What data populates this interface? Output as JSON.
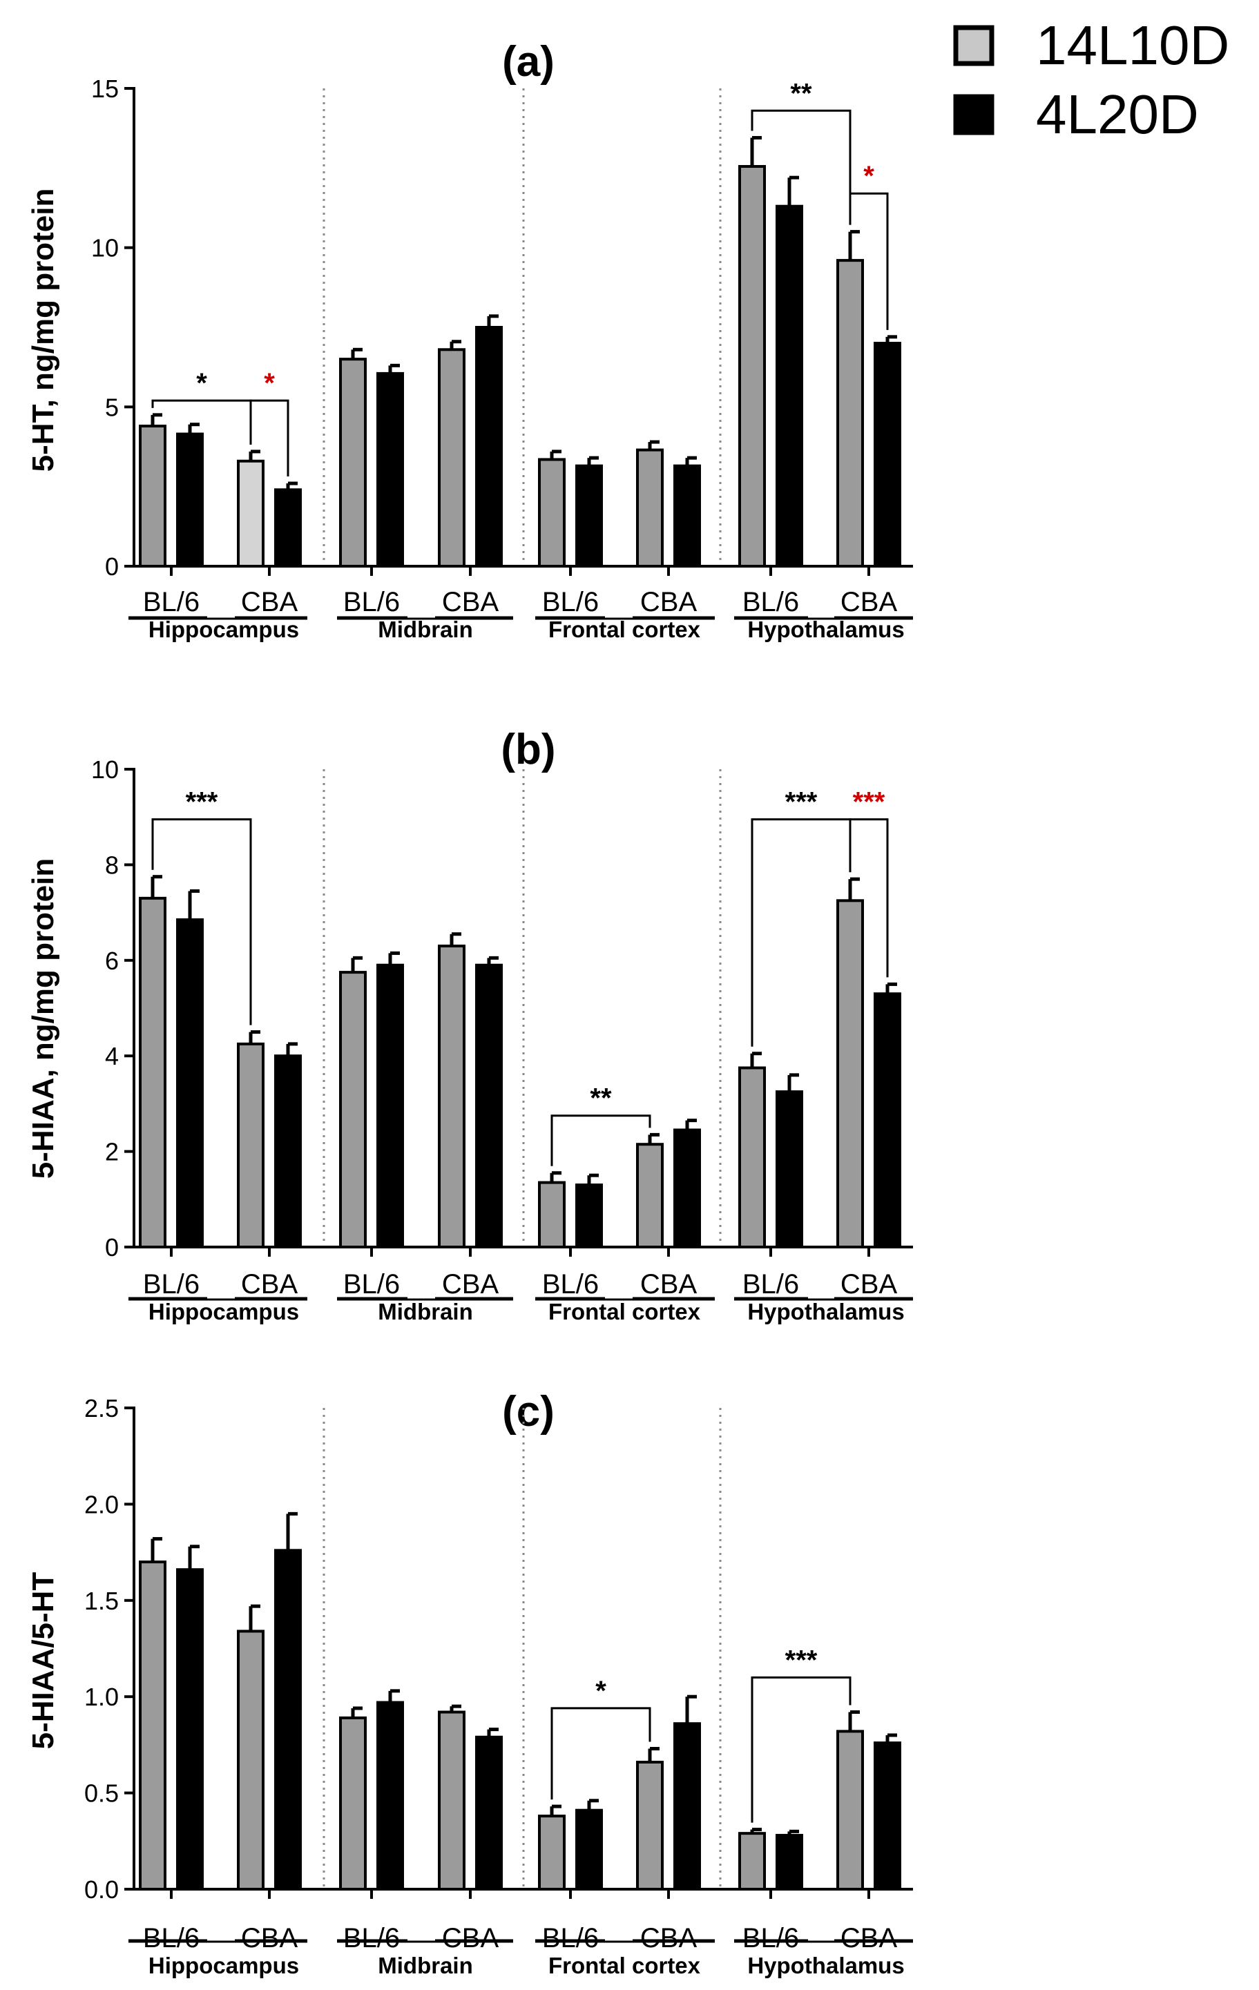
{
  "legend": {
    "entries": [
      {
        "label": "14L10D",
        "color": "#c8c8c8"
      },
      {
        "label": "4L20D",
        "color": "#000000"
      }
    ],
    "position": "top-right"
  },
  "colors": {
    "group1": "#9b9b9b",
    "group1_highlight": "#d4d4d4",
    "group2": "#000000",
    "sig_black": "#000000",
    "sig_red": "#d00000",
    "divider": "#888888"
  },
  "chart_data": [
    {
      "type": "bar",
      "title": "(a)",
      "ylabel": "5-HT, ng/mg protein",
      "ylim": [
        0,
        15
      ],
      "yticks": [
        0,
        5,
        10,
        15
      ],
      "ytick_labels": [
        "0",
        "5",
        "10",
        "15"
      ],
      "regions": [
        "Hippocampus",
        "Midbrain",
        "Frontal cortex",
        "Hypothalamus"
      ],
      "strains": [
        "BL/6",
        "CBA"
      ],
      "series": [
        {
          "name": "14L10D",
          "values": [
            4.4,
            3.3,
            6.5,
            6.8,
            3.35,
            3.65,
            12.55,
            9.6
          ],
          "errors": [
            0.35,
            0.3,
            0.3,
            0.25,
            0.25,
            0.25,
            0.9,
            0.9
          ]
        },
        {
          "name": "4L20D",
          "values": [
            4.15,
            2.4,
            6.05,
            7.5,
            3.15,
            3.15,
            11.3,
            7.0
          ],
          "errors": [
            0.3,
            0.2,
            0.25,
            0.35,
            0.25,
            0.25,
            0.9,
            0.2
          ]
        }
      ],
      "highlight": [
        1
      ],
      "significance": [
        {
          "from": [
            0,
            0
          ],
          "to": [
            1,
            0
          ],
          "label": "*",
          "color": "black",
          "y": 5.2
        },
        {
          "from": [
            1,
            0
          ],
          "to": [
            1,
            1
          ],
          "label": "*",
          "color": "red",
          "y": 5.2
        },
        {
          "from": [
            6,
            0
          ],
          "to": [
            7,
            0
          ],
          "label": "**",
          "color": "black",
          "y": 14.3
        },
        {
          "from": [
            7,
            0
          ],
          "to": [
            7,
            1
          ],
          "label": "*",
          "color": "red",
          "y": 11.7
        }
      ]
    },
    {
      "type": "bar",
      "title": "(b)",
      "ylabel": "5-HIAA, ng/mg protein",
      "ylim": [
        0,
        10
      ],
      "yticks": [
        0,
        2,
        4,
        6,
        8,
        10
      ],
      "ytick_labels": [
        "0",
        "2",
        "4",
        "6",
        "8",
        "10"
      ],
      "regions": [
        "Hippocampus",
        "Midbrain",
        "Frontal cortex",
        "Hypothalamus"
      ],
      "strains": [
        "BL/6",
        "CBA"
      ],
      "series": [
        {
          "name": "14L10D",
          "values": [
            7.3,
            4.25,
            5.75,
            6.3,
            1.35,
            2.15,
            3.75,
            7.25
          ],
          "errors": [
            0.45,
            0.25,
            0.3,
            0.25,
            0.2,
            0.2,
            0.3,
            0.45
          ]
        },
        {
          "name": "4L20D",
          "values": [
            6.85,
            4.0,
            5.9,
            5.9,
            1.3,
            2.45,
            3.25,
            5.3
          ],
          "errors": [
            0.6,
            0.25,
            0.25,
            0.15,
            0.2,
            0.2,
            0.35,
            0.2
          ]
        }
      ],
      "highlight": [],
      "significance": [
        {
          "from": [
            0,
            0
          ],
          "to": [
            1,
            0
          ],
          "label": "***",
          "color": "black",
          "y": 8.95
        },
        {
          "from": [
            4,
            0
          ],
          "to": [
            5,
            0
          ],
          "label": "**",
          "color": "black",
          "y": 2.75
        },
        {
          "from": [
            6,
            0
          ],
          "to": [
            7,
            0
          ],
          "label": "***",
          "color": "black",
          "y": 8.95
        },
        {
          "from": [
            7,
            0
          ],
          "to": [
            7,
            1
          ],
          "label": "***",
          "color": "red",
          "y": 8.95
        }
      ]
    },
    {
      "type": "bar",
      "title": "(c)",
      "ylabel": "5-HIAA/5-HT",
      "ylim": [
        0,
        2.5
      ],
      "yticks": [
        0,
        0.5,
        1.0,
        1.5,
        2.0,
        2.5
      ],
      "ytick_labels": [
        "0.0",
        "0.5",
        "1.0",
        "1.5",
        "2.0",
        "2.5"
      ],
      "regions": [
        "Hippocampus",
        "Midbrain",
        "Frontal cortex",
        "Hypothalamus"
      ],
      "strains": [
        "BL/6",
        "CBA"
      ],
      "series": [
        {
          "name": "14L10D",
          "values": [
            1.7,
            1.34,
            0.89,
            0.92,
            0.38,
            0.66,
            0.29,
            0.82
          ],
          "errors": [
            0.12,
            0.13,
            0.05,
            0.03,
            0.05,
            0.07,
            0.02,
            0.1
          ]
        },
        {
          "name": "4L20D",
          "values": [
            1.66,
            1.76,
            0.97,
            0.79,
            0.41,
            0.86,
            0.28,
            0.76
          ],
          "errors": [
            0.12,
            0.19,
            0.06,
            0.04,
            0.05,
            0.14,
            0.02,
            0.04
          ]
        }
      ],
      "highlight": [],
      "significance": [
        {
          "from": [
            4,
            0
          ],
          "to": [
            5,
            0
          ],
          "label": "*",
          "color": "black",
          "y": 0.94
        },
        {
          "from": [
            6,
            0
          ],
          "to": [
            7,
            0
          ],
          "label": "***",
          "color": "black",
          "y": 1.1
        }
      ]
    }
  ]
}
